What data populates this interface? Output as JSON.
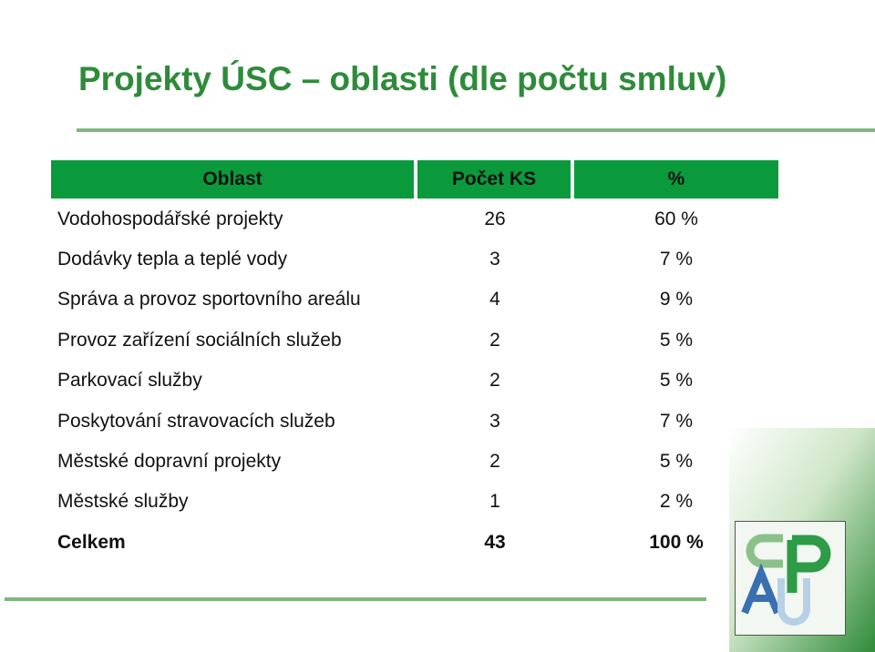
{
  "title": "Projekty ÚSC – oblasti (dle počtu smluv)",
  "colors": {
    "title": "#2e8b3a",
    "header_bg": "#0a9a3c",
    "rule": "#7fb77f"
  },
  "table": {
    "headers": [
      "Oblast",
      "Počet KS",
      "%"
    ],
    "rows": [
      {
        "oblast": "Vodohospodářské projekty",
        "pocet": "26",
        "pct": "60 %"
      },
      {
        "oblast": "Dodávky tepla a teplé vody",
        "pocet": "3",
        "pct": "7 %"
      },
      {
        "oblast": "Správa a provoz sportovního areálu",
        "pocet": "4",
        "pct": "9 %"
      },
      {
        "oblast": "Provoz zařízení sociálních služeb",
        "pocet": "2",
        "pct": "5 %"
      },
      {
        "oblast": "Parkovací služby",
        "pocet": "2",
        "pct": "5 %"
      },
      {
        "oblast": "Poskytování stravovacích služeb",
        "pocet": "3",
        "pct": "7 %"
      },
      {
        "oblast": "Městské dopravní projekty",
        "pocet": "2",
        "pct": "5 %"
      },
      {
        "oblast": "Městské služby",
        "pocet": "1",
        "pct": "2 %"
      }
    ],
    "total": {
      "oblast": "Celkem",
      "pocet": "43",
      "pct": "100 %"
    }
  },
  "logo": {
    "icon": "ppp-logo-icon"
  }
}
